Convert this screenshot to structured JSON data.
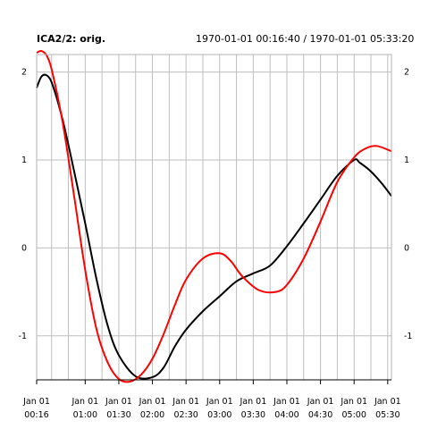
{
  "header": {
    "title": "ICA2/2:  orig.",
    "range": "1970-01-01 00:16:40 / 1970-01-01 05:33:20"
  },
  "chart_data": {
    "type": "line",
    "title": "ICA2/2:  orig.",
    "subtitle": "1970-01-01 00:16:40 / 1970-01-01 05:33:20",
    "xlabel": "",
    "ylabel": "",
    "xlim": [
      "1970-01-01 00:16:40",
      "1970-01-01 05:33:20"
    ],
    "ylim": [
      -1.5,
      2.2
    ],
    "grid": true,
    "x_ticks": [
      {
        "value": "1970-01-01 00:16:40",
        "line1": "Jan 01",
        "line2": "00:16"
      },
      {
        "value": "1970-01-01 01:00:00",
        "line1": "Jan 01",
        "line2": "01:00"
      },
      {
        "value": "1970-01-01 01:30:00",
        "line1": "Jan 01",
        "line2": "01:30"
      },
      {
        "value": "1970-01-01 02:00:00",
        "line1": "Jan 01",
        "line2": "02:00"
      },
      {
        "value": "1970-01-01 02:30:00",
        "line1": "Jan 01",
        "line2": "02:30"
      },
      {
        "value": "1970-01-01 03:00:00",
        "line1": "Jan 01",
        "line2": "03:00"
      },
      {
        "value": "1970-01-01 03:30:00",
        "line1": "Jan 01",
        "line2": "03:30"
      },
      {
        "value": "1970-01-01 04:00:00",
        "line1": "Jan 01",
        "line2": "04:00"
      },
      {
        "value": "1970-01-01 04:30:00",
        "line1": "Jan 01",
        "line2": "04:30"
      },
      {
        "value": "1970-01-01 05:00:00",
        "line1": "Jan 01",
        "line2": "05:00"
      },
      {
        "value": "1970-01-01 05:30:00",
        "line1": "Jan 01",
        "line2": "05:30"
      }
    ],
    "y_ticks": [
      -1,
      0,
      1,
      2
    ],
    "series": [
      {
        "color": "#000000",
        "x": [
          "1970-01-01 00:16:40",
          "1970-01-01 00:21:00",
          "1970-01-01 00:26:00",
          "1970-01-01 00:31:00",
          "1970-01-01 00:40:00",
          "1970-01-01 00:50:00",
          "1970-01-01 01:00:00",
          "1970-01-01 01:10:00",
          "1970-01-01 01:20:00",
          "1970-01-01 01:30:00",
          "1970-01-01 01:45:00",
          "1970-01-01 02:00:00",
          "1970-01-01 02:10:00",
          "1970-01-01 02:20:00",
          "1970-01-01 02:30:00",
          "1970-01-01 02:45:00",
          "1970-01-01 03:00:00",
          "1970-01-01 03:15:00",
          "1970-01-01 03:30:00",
          "1970-01-01 03:45:00",
          "1970-01-01 04:00:00",
          "1970-01-01 04:15:00",
          "1970-01-01 04:30:00",
          "1970-01-01 04:45:00",
          "1970-01-01 05:00:00",
          "1970-01-01 05:05:00",
          "1970-01-01 05:15:00",
          "1970-01-01 05:25:00",
          "1970-01-01 05:33:20"
        ],
        "values": [
          1.82,
          1.95,
          1.96,
          1.85,
          1.45,
          0.88,
          0.28,
          -0.35,
          -0.88,
          -1.22,
          -1.46,
          -1.47,
          -1.36,
          -1.12,
          -0.93,
          -0.72,
          -0.55,
          -0.38,
          -0.29,
          -0.2,
          0.02,
          0.28,
          0.55,
          0.82,
          1.0,
          0.97,
          0.87,
          0.73,
          0.59
        ]
      },
      {
        "color": "#ff0000",
        "x": [
          "1970-01-01 00:16:40",
          "1970-01-01 00:21:00",
          "1970-01-01 00:26:00",
          "1970-01-01 00:31:00",
          "1970-01-01 00:40:00",
          "1970-01-01 00:50:00",
          "1970-01-01 01:00:00",
          "1970-01-01 01:10:00",
          "1970-01-01 01:20:00",
          "1970-01-01 01:30:00",
          "1970-01-01 01:40:00",
          "1970-01-01 01:50:00",
          "1970-01-01 02:00:00",
          "1970-01-01 02:10:00",
          "1970-01-01 02:20:00",
          "1970-01-01 02:30:00",
          "1970-01-01 02:45:00",
          "1970-01-01 03:00:00",
          "1970-01-01 03:10:00",
          "1970-01-01 03:20:00",
          "1970-01-01 03:35:00",
          "1970-01-01 03:50:00",
          "1970-01-01 04:00:00",
          "1970-01-01 04:15:00",
          "1970-01-01 04:30:00",
          "1970-01-01 04:45:00",
          "1970-01-01 05:00:00",
          "1970-01-01 05:10:00",
          "1970-01-01 05:20:00",
          "1970-01-01 05:33:20"
        ],
        "values": [
          2.22,
          2.24,
          2.18,
          1.98,
          1.42,
          0.6,
          -0.25,
          -0.92,
          -1.3,
          -1.49,
          -1.52,
          -1.44,
          -1.26,
          -0.98,
          -0.65,
          -0.36,
          -0.12,
          -0.06,
          -0.15,
          -0.32,
          -0.48,
          -0.5,
          -0.42,
          -0.12,
          0.3,
          0.75,
          1.03,
          1.13,
          1.16,
          1.1
        ]
      }
    ]
  }
}
